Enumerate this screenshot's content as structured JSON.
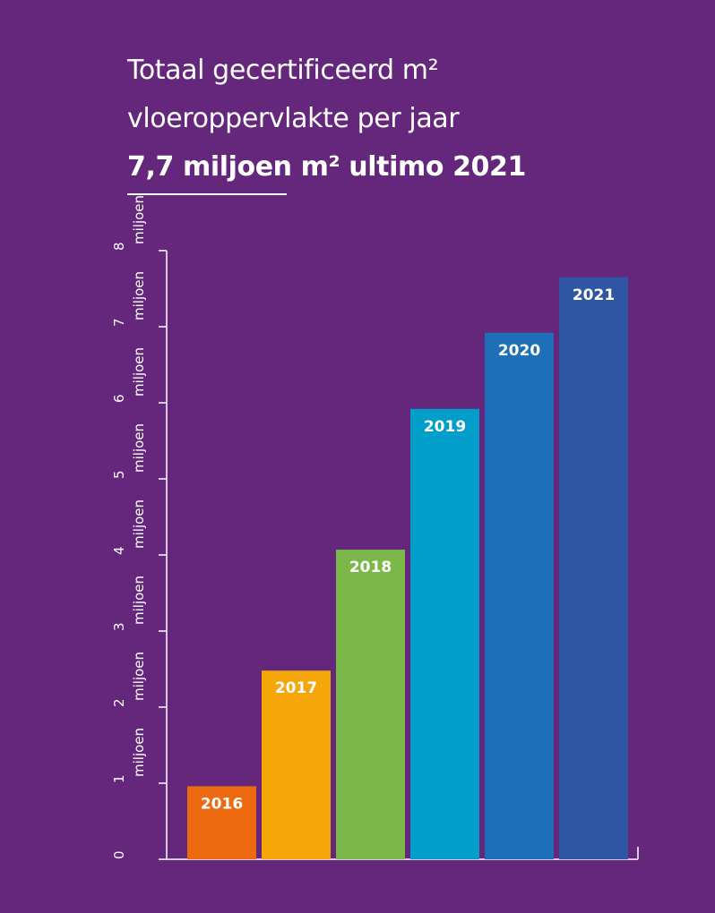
{
  "title": {
    "line1": "Totaal gecertificeerd m²",
    "line2": "vloeroppervlakte per jaar",
    "highlight": "7,7 miljoen m² ultimo 2021"
  },
  "colors": {
    "background": "#65277c",
    "axis": "#ffffff",
    "text": "#ffffff"
  },
  "chart_data": {
    "type": "bar",
    "title": "Totaal gecertificeerd m² vloeroppervlakte per jaar",
    "subtitle": "7,7 miljoen m² ultimo 2021",
    "categories": [
      "2016",
      "2017",
      "2018",
      "2019",
      "2020",
      "2021"
    ],
    "values": [
      0.96,
      2.48,
      4.07,
      5.92,
      6.92,
      7.65
    ],
    "bar_colors": [
      "#ee6a10",
      "#f5a70a",
      "#7cb74a",
      "#009ec9",
      "#1d70b8",
      "#2f56a3"
    ],
    "ylim": [
      0,
      8
    ],
    "yticks": [
      0,
      1,
      2,
      3,
      4,
      5,
      6,
      7,
      8
    ],
    "ytick_suffix": "miljoen",
    "xlabel": "",
    "ylabel": "",
    "grid": false,
    "legend": "none"
  }
}
